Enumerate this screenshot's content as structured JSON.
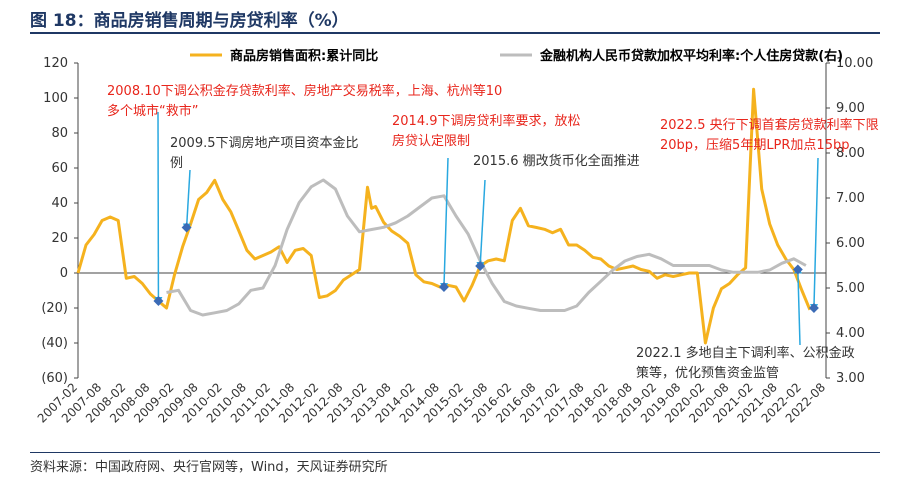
{
  "figure_title": "图 18：商品房销售周期与房贷利率（%）",
  "source": "资料来源：中国政府网、央行官网等，Wind，天风证券研究所",
  "colors": {
    "sales": "#f5b21e",
    "rate": "#bdbdbd",
    "arrow": "#29a8e0",
    "marker": "#3b6bb6",
    "red": "#e8261c",
    "dark": "#333333",
    "title": "#1f3864"
  },
  "chart_data": {
    "type": "line",
    "legend_position": "top",
    "grid": false,
    "y_left": {
      "ylim": [
        -60,
        120
      ],
      "ticks": [
        "120",
        "100",
        "80",
        "60",
        "40",
        "20",
        "0",
        "(20)",
        "(40)",
        "(60)"
      ]
    },
    "y_right": {
      "ylim": [
        3.0,
        10.0
      ],
      "ticks": [
        "10.00",
        "9.00",
        "8.00",
        "7.00",
        "6.00",
        "5.00",
        "4.00",
        "3.00"
      ]
    },
    "x_range": [
      "2007-02",
      "2022-08"
    ],
    "x_ticks": [
      "2007-02",
      "2007-08",
      "2008-02",
      "2008-08",
      "2009-02",
      "2009-08",
      "2010-02",
      "2010-08",
      "2011-02",
      "2011-08",
      "2012-02",
      "2012-08",
      "2013-02",
      "2013-08",
      "2014-02",
      "2014-08",
      "2015-02",
      "2015-08",
      "2016-02",
      "2016-08",
      "2017-02",
      "2017-08",
      "2018-02",
      "2018-08",
      "2019-02",
      "2019-08",
      "2020-02",
      "2020-08",
      "2021-02",
      "2021-08",
      "2022-02",
      "2022-08"
    ],
    "series": [
      {
        "name": "商品房销售面积:累计同比",
        "axis": "left",
        "color": "#f5b21e",
        "points": [
          [
            "2007-02",
            0
          ],
          [
            "2007-04",
            16
          ],
          [
            "2007-06",
            22
          ],
          [
            "2007-08",
            30
          ],
          [
            "2007-10",
            32
          ],
          [
            "2007-12",
            30
          ],
          [
            "2008-02",
            -3
          ],
          [
            "2008-04",
            -2
          ],
          [
            "2008-06",
            -6
          ],
          [
            "2008-08",
            -12
          ],
          [
            "2008-10",
            -16
          ],
          [
            "2008-12",
            -20
          ],
          [
            "2009-02",
            -1
          ],
          [
            "2009-04",
            15
          ],
          [
            "2009-06",
            28
          ],
          [
            "2009-08",
            42
          ],
          [
            "2009-10",
            46
          ],
          [
            "2009-12",
            53
          ],
          [
            "2010-02",
            42
          ],
          [
            "2010-04",
            35
          ],
          [
            "2010-06",
            24
          ],
          [
            "2010-08",
            13
          ],
          [
            "2010-10",
            8
          ],
          [
            "2010-12",
            10
          ],
          [
            "2011-02",
            12
          ],
          [
            "2011-04",
            15
          ],
          [
            "2011-06",
            6
          ],
          [
            "2011-08",
            13
          ],
          [
            "2011-10",
            14
          ],
          [
            "2011-12",
            10
          ],
          [
            "2012-02",
            -14
          ],
          [
            "2012-04",
            -13
          ],
          [
            "2012-06",
            -10
          ],
          [
            "2012-08",
            -4
          ],
          [
            "2012-10",
            -1
          ],
          [
            "2012-12",
            2
          ],
          [
            "2013-02",
            49
          ],
          [
            "2013-03",
            37
          ],
          [
            "2013-04",
            38
          ],
          [
            "2013-06",
            29
          ],
          [
            "2013-08",
            24
          ],
          [
            "2013-10",
            21
          ],
          [
            "2013-12",
            17
          ],
          [
            "2014-02",
            -1
          ],
          [
            "2014-04",
            -5
          ],
          [
            "2014-06",
            -6
          ],
          [
            "2014-08",
            -8
          ],
          [
            "2014-10",
            -7
          ],
          [
            "2014-12",
            -8
          ],
          [
            "2015-02",
            -16
          ],
          [
            "2015-04",
            -7
          ],
          [
            "2015-06",
            4
          ],
          [
            "2015-08",
            7
          ],
          [
            "2015-10",
            8
          ],
          [
            "2015-12",
            7
          ],
          [
            "2016-02",
            30
          ],
          [
            "2016-04",
            37
          ],
          [
            "2016-06",
            27
          ],
          [
            "2016-08",
            26
          ],
          [
            "2016-10",
            25
          ],
          [
            "2016-12",
            23
          ],
          [
            "2017-02",
            25
          ],
          [
            "2017-04",
            16
          ],
          [
            "2017-06",
            16
          ],
          [
            "2017-08",
            13
          ],
          [
            "2017-10",
            9
          ],
          [
            "2017-12",
            8
          ],
          [
            "2018-02",
            4
          ],
          [
            "2018-04",
            2
          ],
          [
            "2018-06",
            3
          ],
          [
            "2018-08",
            4
          ],
          [
            "2018-10",
            2
          ],
          [
            "2018-12",
            1
          ],
          [
            "2019-02",
            -3
          ],
          [
            "2019-04",
            -1
          ],
          [
            "2019-06",
            -2
          ],
          [
            "2019-08",
            -1
          ],
          [
            "2019-10",
            0
          ],
          [
            "2019-12",
            0
          ],
          [
            "2020-02",
            -40
          ],
          [
            "2020-04",
            -20
          ],
          [
            "2020-06",
            -9
          ],
          [
            "2020-08",
            -6
          ],
          [
            "2020-10",
            -1
          ],
          [
            "2020-12",
            3
          ],
          [
            "2021-02",
            105
          ],
          [
            "2021-04",
            48
          ],
          [
            "2021-06",
            28
          ],
          [
            "2021-08",
            16
          ],
          [
            "2021-10",
            8
          ],
          [
            "2021-12",
            2
          ],
          [
            "2022-02",
            -10
          ],
          [
            "2022-04",
            -21
          ]
        ]
      },
      {
        "name": "金融机构人民币贷款加权平均利率:个人住房贷款(右)",
        "axis": "right",
        "color": "#bdbdbd",
        "points": [
          [
            "2008-12",
            4.9
          ],
          [
            "2009-03",
            4.95
          ],
          [
            "2009-06",
            4.5
          ],
          [
            "2009-09",
            4.4
          ],
          [
            "2009-12",
            4.45
          ],
          [
            "2010-03",
            4.5
          ],
          [
            "2010-06",
            4.65
          ],
          [
            "2010-09",
            4.95
          ],
          [
            "2010-12",
            5.0
          ],
          [
            "2011-03",
            5.5
          ],
          [
            "2011-06",
            6.3
          ],
          [
            "2011-09",
            6.9
          ],
          [
            "2011-12",
            7.25
          ],
          [
            "2012-03",
            7.4
          ],
          [
            "2012-06",
            7.2
          ],
          [
            "2012-09",
            6.6
          ],
          [
            "2012-12",
            6.25
          ],
          [
            "2013-03",
            6.3
          ],
          [
            "2013-06",
            6.35
          ],
          [
            "2013-09",
            6.45
          ],
          [
            "2013-12",
            6.6
          ],
          [
            "2014-03",
            6.8
          ],
          [
            "2014-06",
            7.0
          ],
          [
            "2014-09",
            7.05
          ],
          [
            "2014-12",
            6.6
          ],
          [
            "2015-03",
            6.2
          ],
          [
            "2015-06",
            5.6
          ],
          [
            "2015-09",
            5.1
          ],
          [
            "2015-12",
            4.7
          ],
          [
            "2016-03",
            4.6
          ],
          [
            "2016-06",
            4.55
          ],
          [
            "2016-09",
            4.5
          ],
          [
            "2016-12",
            4.5
          ],
          [
            "2017-03",
            4.5
          ],
          [
            "2017-06",
            4.6
          ],
          [
            "2017-09",
            4.9
          ],
          [
            "2017-12",
            5.15
          ],
          [
            "2018-03",
            5.4
          ],
          [
            "2018-06",
            5.6
          ],
          [
            "2018-09",
            5.7
          ],
          [
            "2018-12",
            5.75
          ],
          [
            "2019-03",
            5.65
          ],
          [
            "2019-06",
            5.5
          ],
          [
            "2019-09",
            5.5
          ],
          [
            "2019-12",
            5.5
          ],
          [
            "2020-03",
            5.5
          ],
          [
            "2020-06",
            5.4
          ],
          [
            "2020-09",
            5.35
          ],
          [
            "2020-12",
            5.35
          ],
          [
            "2021-03",
            5.35
          ],
          [
            "2021-06",
            5.4
          ],
          [
            "2021-09",
            5.55
          ],
          [
            "2021-12",
            5.65
          ],
          [
            "2022-03",
            5.5
          ]
        ]
      }
    ],
    "annotations": [
      {
        "lines": [
          "2008.10下调公积金存贷款利率、房地产交易税率，上海、杭州等10",
          "多个城市“救市”"
        ],
        "color": "#e8261c",
        "at": "2008-10",
        "value": -16
      },
      {
        "lines": [
          "2009.5下调房地产项目资本金比",
          "例"
        ],
        "color": "#333333",
        "at": "2009-05",
        "value": 26
      },
      {
        "lines": [
          "2014.9下调房贷利率要求，放松",
          "房贷认定限制"
        ],
        "color": "#e8261c",
        "at": "2014-09",
        "value": -8
      },
      {
        "lines": [
          "2015.6 棚改货币化全面推进"
        ],
        "color": "#333333",
        "at": "2015-06",
        "value": 4
      },
      {
        "lines": [
          "2022.5 央行下调首套房贷款利率下限",
          "20bp，压缩5年期LPR加点15bp"
        ],
        "color": "#e8261c",
        "at": "2022-05",
        "value": -20
      },
      {
        "lines": [
          "2022.1 多地自主下调利率、公积金政",
          "策等，优化预售资金监管"
        ],
        "color": "#333333",
        "at": "2022-01",
        "value": 2
      }
    ]
  }
}
